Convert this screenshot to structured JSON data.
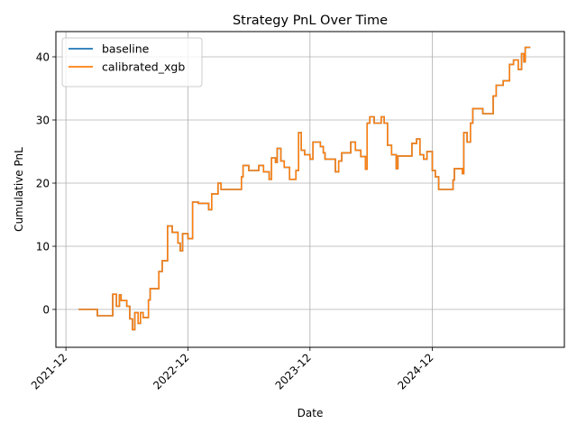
{
  "chart_data": {
    "type": "line",
    "title": "Strategy PnL Over Time",
    "xlabel": "Date",
    "ylabel": "Cumulative PnL",
    "x_axis": {
      "type": "date",
      "range": [
        "2021-11-01",
        "2025-12-31"
      ],
      "ticks": [
        {
          "date": "2021-12-01",
          "label": "2021-12"
        },
        {
          "date": "2022-12-01",
          "label": "2022-12"
        },
        {
          "date": "2023-12-01",
          "label": "2023-12"
        },
        {
          "date": "2024-12-01",
          "label": "2024-12"
        }
      ]
    },
    "y_axis": {
      "range": [
        -6,
        44
      ],
      "ticks": [
        0,
        10,
        20,
        30,
        40
      ]
    },
    "grid": true,
    "legend": {
      "placement": "top-left"
    },
    "step": true,
    "series": [
      {
        "name": "baseline",
        "color": "#1f77b4",
        "points": [
          [
            "2022-01-08",
            0
          ],
          [
            "2022-03-01",
            0
          ],
          [
            "2022-03-05",
            -1
          ],
          [
            "2022-04-15",
            -1
          ],
          [
            "2022-04-20",
            2.4
          ],
          [
            "2022-05-01",
            0.5
          ],
          [
            "2022-05-10",
            2.3
          ],
          [
            "2022-05-15",
            1.4
          ],
          [
            "2022-06-01",
            0.5
          ],
          [
            "2022-06-10",
            -1.5
          ],
          [
            "2022-06-18",
            -3.2
          ],
          [
            "2022-06-25",
            -0.5
          ],
          [
            "2022-07-05",
            -2.2
          ],
          [
            "2022-07-12",
            -0.5
          ],
          [
            "2022-07-20",
            -1.3
          ],
          [
            "2022-08-05",
            1.5
          ],
          [
            "2022-08-10",
            3.3
          ],
          [
            "2022-09-05",
            6
          ],
          [
            "2022-09-15",
            7.7
          ],
          [
            "2022-10-01",
            13.2
          ],
          [
            "2022-10-15",
            12.2
          ],
          [
            "2022-11-01",
            10.5
          ],
          [
            "2022-11-08",
            9.3
          ],
          [
            "2022-11-15",
            12
          ],
          [
            "2022-12-01",
            11.2
          ],
          [
            "2022-12-15",
            17
          ],
          [
            "2023-01-01",
            16.8
          ],
          [
            "2023-02-01",
            15.8
          ],
          [
            "2023-02-10",
            18.3
          ],
          [
            "2023-03-01",
            20
          ],
          [
            "2023-03-10",
            19
          ],
          [
            "2023-05-10",
            21
          ],
          [
            "2023-05-15",
            22.8
          ],
          [
            "2023-06-01",
            22
          ],
          [
            "2023-07-01",
            22.8
          ],
          [
            "2023-07-15",
            21.8
          ],
          [
            "2023-08-01",
            20.6
          ],
          [
            "2023-08-08",
            24
          ],
          [
            "2023-08-20",
            23.3
          ],
          [
            "2023-08-25",
            25.5
          ],
          [
            "2023-09-05",
            23.5
          ],
          [
            "2023-09-15",
            22.5
          ],
          [
            "2023-10-01",
            20.6
          ],
          [
            "2023-10-20",
            22
          ],
          [
            "2023-10-28",
            28
          ],
          [
            "2023-11-05",
            25.2
          ],
          [
            "2023-11-15",
            24.5
          ],
          [
            "2023-12-01",
            23.8
          ],
          [
            "2023-12-10",
            26.5
          ],
          [
            "2024-01-01",
            25.8
          ],
          [
            "2024-01-10",
            24.8
          ],
          [
            "2024-01-15",
            23.8
          ],
          [
            "2024-02-15",
            21.8
          ],
          [
            "2024-02-25",
            23.5
          ],
          [
            "2024-03-05",
            24.8
          ],
          [
            "2024-04-01",
            26.5
          ],
          [
            "2024-04-15",
            25.2
          ],
          [
            "2024-05-01",
            24.2
          ],
          [
            "2024-05-15",
            22.2
          ],
          [
            "2024-05-20",
            29.5
          ],
          [
            "2024-05-28",
            30.5
          ],
          [
            "2024-06-10",
            29.5
          ],
          [
            "2024-07-01",
            30.5
          ],
          [
            "2024-07-10",
            29.5
          ],
          [
            "2024-07-20",
            26
          ],
          [
            "2024-08-01",
            24.5
          ],
          [
            "2024-08-15",
            22.3
          ],
          [
            "2024-08-20",
            24.3
          ],
          [
            "2024-10-01",
            26.3
          ],
          [
            "2024-10-15",
            27
          ],
          [
            "2024-10-25",
            24.5
          ],
          [
            "2024-11-05",
            23.8
          ],
          [
            "2024-11-15",
            25
          ],
          [
            "2024-12-01",
            22
          ],
          [
            "2024-12-10",
            21
          ],
          [
            "2024-12-20",
            19
          ],
          [
            "2025-02-01",
            20.5
          ],
          [
            "2025-02-05",
            22.3
          ],
          [
            "2025-03-01",
            21.5
          ],
          [
            "2025-03-05",
            28
          ],
          [
            "2025-03-15",
            26.5
          ],
          [
            "2025-03-25",
            29.5
          ],
          [
            "2025-04-01",
            31.8
          ],
          [
            "2025-05-01",
            31
          ],
          [
            "2025-06-01",
            33.8
          ],
          [
            "2025-06-10",
            35.5
          ],
          [
            "2025-07-01",
            36.2
          ],
          [
            "2025-07-20",
            38.8
          ],
          [
            "2025-08-01",
            39.5
          ],
          [
            "2025-08-15",
            38
          ],
          [
            "2025-08-25",
            40.5
          ],
          [
            "2025-09-01",
            39.2
          ],
          [
            "2025-09-05",
            41.5
          ],
          [
            "2025-09-20",
            41.5
          ]
        ]
      },
      {
        "name": "calibrated_xgb",
        "color": "#ff7f0e",
        "points": [
          [
            "2022-01-08",
            0
          ],
          [
            "2022-03-01",
            0
          ],
          [
            "2022-03-05",
            -1
          ],
          [
            "2022-04-15",
            -1
          ],
          [
            "2022-04-20",
            2.4
          ],
          [
            "2022-05-01",
            0.5
          ],
          [
            "2022-05-10",
            2.3
          ],
          [
            "2022-05-15",
            1.4
          ],
          [
            "2022-06-01",
            0.5
          ],
          [
            "2022-06-10",
            -1.5
          ],
          [
            "2022-06-18",
            -3.2
          ],
          [
            "2022-06-25",
            -0.5
          ],
          [
            "2022-07-05",
            -2.2
          ],
          [
            "2022-07-12",
            -0.5
          ],
          [
            "2022-07-20",
            -1.3
          ],
          [
            "2022-08-05",
            1.5
          ],
          [
            "2022-08-10",
            3.3
          ],
          [
            "2022-09-05",
            6
          ],
          [
            "2022-09-15",
            7.7
          ],
          [
            "2022-10-01",
            13.2
          ],
          [
            "2022-10-15",
            12.2
          ],
          [
            "2022-11-01",
            10.5
          ],
          [
            "2022-11-08",
            9.3
          ],
          [
            "2022-11-15",
            12
          ],
          [
            "2022-12-01",
            11.2
          ],
          [
            "2022-12-15",
            17
          ],
          [
            "2023-01-01",
            16.8
          ],
          [
            "2023-02-01",
            15.8
          ],
          [
            "2023-02-10",
            18.3
          ],
          [
            "2023-03-01",
            20
          ],
          [
            "2023-03-10",
            19
          ],
          [
            "2023-05-10",
            21
          ],
          [
            "2023-05-15",
            22.8
          ],
          [
            "2023-06-01",
            22
          ],
          [
            "2023-07-01",
            22.8
          ],
          [
            "2023-07-15",
            21.8
          ],
          [
            "2023-08-01",
            20.6
          ],
          [
            "2023-08-08",
            24
          ],
          [
            "2023-08-20",
            23.3
          ],
          [
            "2023-08-25",
            25.5
          ],
          [
            "2023-09-05",
            23.5
          ],
          [
            "2023-09-15",
            22.5
          ],
          [
            "2023-10-01",
            20.6
          ],
          [
            "2023-10-20",
            22
          ],
          [
            "2023-10-28",
            28
          ],
          [
            "2023-11-05",
            25.2
          ],
          [
            "2023-11-15",
            24.5
          ],
          [
            "2023-12-01",
            23.8
          ],
          [
            "2023-12-10",
            26.5
          ],
          [
            "2024-01-01",
            25.8
          ],
          [
            "2024-01-10",
            24.8
          ],
          [
            "2024-01-15",
            23.8
          ],
          [
            "2024-02-15",
            21.8
          ],
          [
            "2024-02-25",
            23.5
          ],
          [
            "2024-03-05",
            24.8
          ],
          [
            "2024-04-01",
            26.5
          ],
          [
            "2024-04-15",
            25.2
          ],
          [
            "2024-05-01",
            24.2
          ],
          [
            "2024-05-15",
            22.2
          ],
          [
            "2024-05-20",
            29.5
          ],
          [
            "2024-05-28",
            30.5
          ],
          [
            "2024-06-10",
            29.5
          ],
          [
            "2024-07-01",
            30.5
          ],
          [
            "2024-07-10",
            29.5
          ],
          [
            "2024-07-20",
            26
          ],
          [
            "2024-08-01",
            24.5
          ],
          [
            "2024-08-15",
            22.3
          ],
          [
            "2024-08-20",
            24.3
          ],
          [
            "2024-10-01",
            26.3
          ],
          [
            "2024-10-15",
            27
          ],
          [
            "2024-10-25",
            24.5
          ],
          [
            "2024-11-05",
            23.8
          ],
          [
            "2024-11-15",
            25
          ],
          [
            "2024-12-01",
            22
          ],
          [
            "2024-12-10",
            21
          ],
          [
            "2024-12-20",
            19
          ],
          [
            "2025-02-01",
            20.5
          ],
          [
            "2025-02-05",
            22.3
          ],
          [
            "2025-03-01",
            21.5
          ],
          [
            "2025-03-05",
            28
          ],
          [
            "2025-03-15",
            26.5
          ],
          [
            "2025-03-25",
            29.5
          ],
          [
            "2025-04-01",
            31.8
          ],
          [
            "2025-05-01",
            31
          ],
          [
            "2025-06-01",
            33.8
          ],
          [
            "2025-06-10",
            35.5
          ],
          [
            "2025-07-01",
            36.2
          ],
          [
            "2025-07-20",
            38.8
          ],
          [
            "2025-08-01",
            39.5
          ],
          [
            "2025-08-15",
            38
          ],
          [
            "2025-08-25",
            40.5
          ],
          [
            "2025-09-01",
            39.2
          ],
          [
            "2025-09-05",
            41.5
          ],
          [
            "2025-09-20",
            41.5
          ]
        ]
      }
    ]
  }
}
